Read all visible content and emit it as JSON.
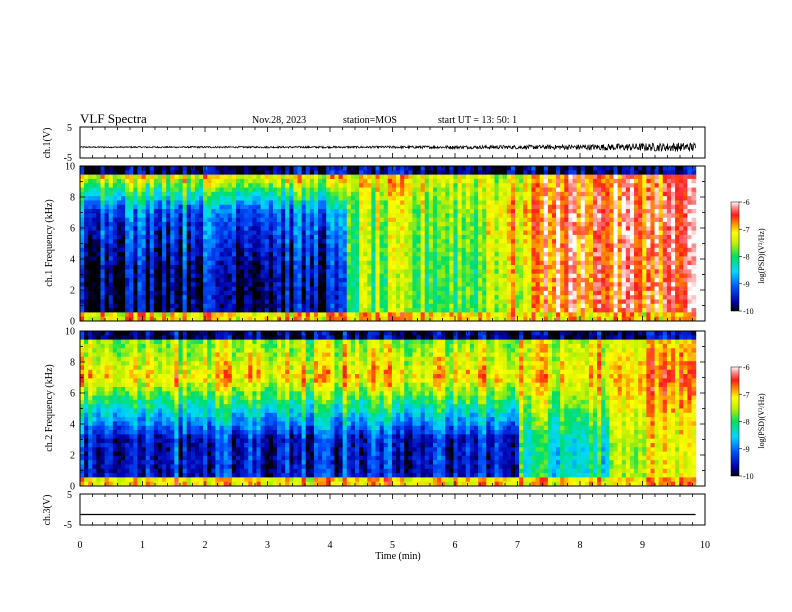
{
  "header": {
    "title": "VLF Spectra",
    "date": "Nov.28, 2023",
    "station": "station=MOS",
    "start": "start  UT =   13: 50: 1"
  },
  "chart_data": {
    "type": "heatmap",
    "title": "VLF Spectra",
    "x": {
      "label": "Time  (min)",
      "range": [
        0,
        10
      ],
      "ticks": [
        "0",
        "1",
        "2",
        "3",
        "4",
        "5",
        "6",
        "7",
        "8",
        "9",
        "10"
      ]
    },
    "panels": [
      {
        "name": "waveform-ch1",
        "kind": "line",
        "ylabel": "ch.1(V)",
        "ylim": [
          -5,
          5
        ],
        "yticks": [
          "5",
          "-5"
        ],
        "noise_envelope": {
          "t": [
            0,
            4.3,
            7.0,
            8.0,
            9.0,
            9.85
          ],
          "amplitude": [
            0.2,
            0.3,
            0.6,
            0.9,
            1.3,
            1.5
          ]
        }
      },
      {
        "name": "spectrogram-ch1",
        "kind": "heatmap",
        "ylabel": "ch.1 Frequency (kHz)",
        "ylim": [
          0,
          10
        ],
        "yticks": [
          "0",
          "2",
          "4",
          "6",
          "8",
          "10"
        ],
        "colorbar": {
          "label": "log(PSD)(V²/Hz)",
          "range": [
            -10,
            -6
          ],
          "ticks": [
            "-6",
            "-7",
            "-8",
            "-9",
            "-10"
          ]
        },
        "time_segments": [
          {
            "t0": 0.0,
            "t1": 4.3,
            "log_psd_low_freq": -9.6,
            "log_psd_mid_freq": -9.0,
            "log_psd_high_freq": -7.0
          },
          {
            "t0": 4.3,
            "t1": 6.5,
            "log_psd_low_freq": -7.8,
            "log_psd_mid_freq": -7.6,
            "log_psd_high_freq": -7.2
          },
          {
            "t0": 6.5,
            "t1": 7.3,
            "log_psd_low_freq": -7.3,
            "log_psd_mid_freq": -7.0,
            "log_psd_high_freq": -7.4
          },
          {
            "t0": 7.3,
            "t1": 9.85,
            "log_psd_low_freq": -6.5,
            "log_psd_mid_freq": -6.4,
            "log_psd_high_freq": -6.6
          }
        ]
      },
      {
        "name": "spectrogram-ch2",
        "kind": "heatmap",
        "ylabel": "ch.2 Frequency (kHz)",
        "ylim": [
          0,
          10
        ],
        "yticks": [
          "0",
          "2",
          "4",
          "6",
          "8",
          "10"
        ],
        "colorbar": {
          "label": "log(PSD)(V²/Hz)",
          "range": [
            -10,
            -6
          ],
          "ticks": [
            "-6",
            "-7",
            "-8",
            "-9",
            "-10"
          ]
        },
        "time_segments": [
          {
            "t0": 0.0,
            "t1": 7.0,
            "log_psd_low_freq": -9.4,
            "log_psd_mid_freq": -7.0,
            "log_psd_high_freq": -7.6
          },
          {
            "t0": 7.0,
            "t1": 8.5,
            "log_psd_low_freq": -8.2,
            "log_psd_mid_freq": -7.0,
            "log_psd_high_freq": -7.3
          },
          {
            "t0": 8.5,
            "t1": 9.85,
            "log_psd_low_freq": -7.4,
            "log_psd_mid_freq": -6.8,
            "log_psd_high_freq": -7.2
          }
        ]
      },
      {
        "name": "waveform-ch3",
        "kind": "line",
        "ylabel": "ch.3(V)",
        "ylim": [
          -5,
          5
        ],
        "yticks": [
          "5",
          "-5"
        ],
        "constant_value": -1.6
      }
    ]
  }
}
